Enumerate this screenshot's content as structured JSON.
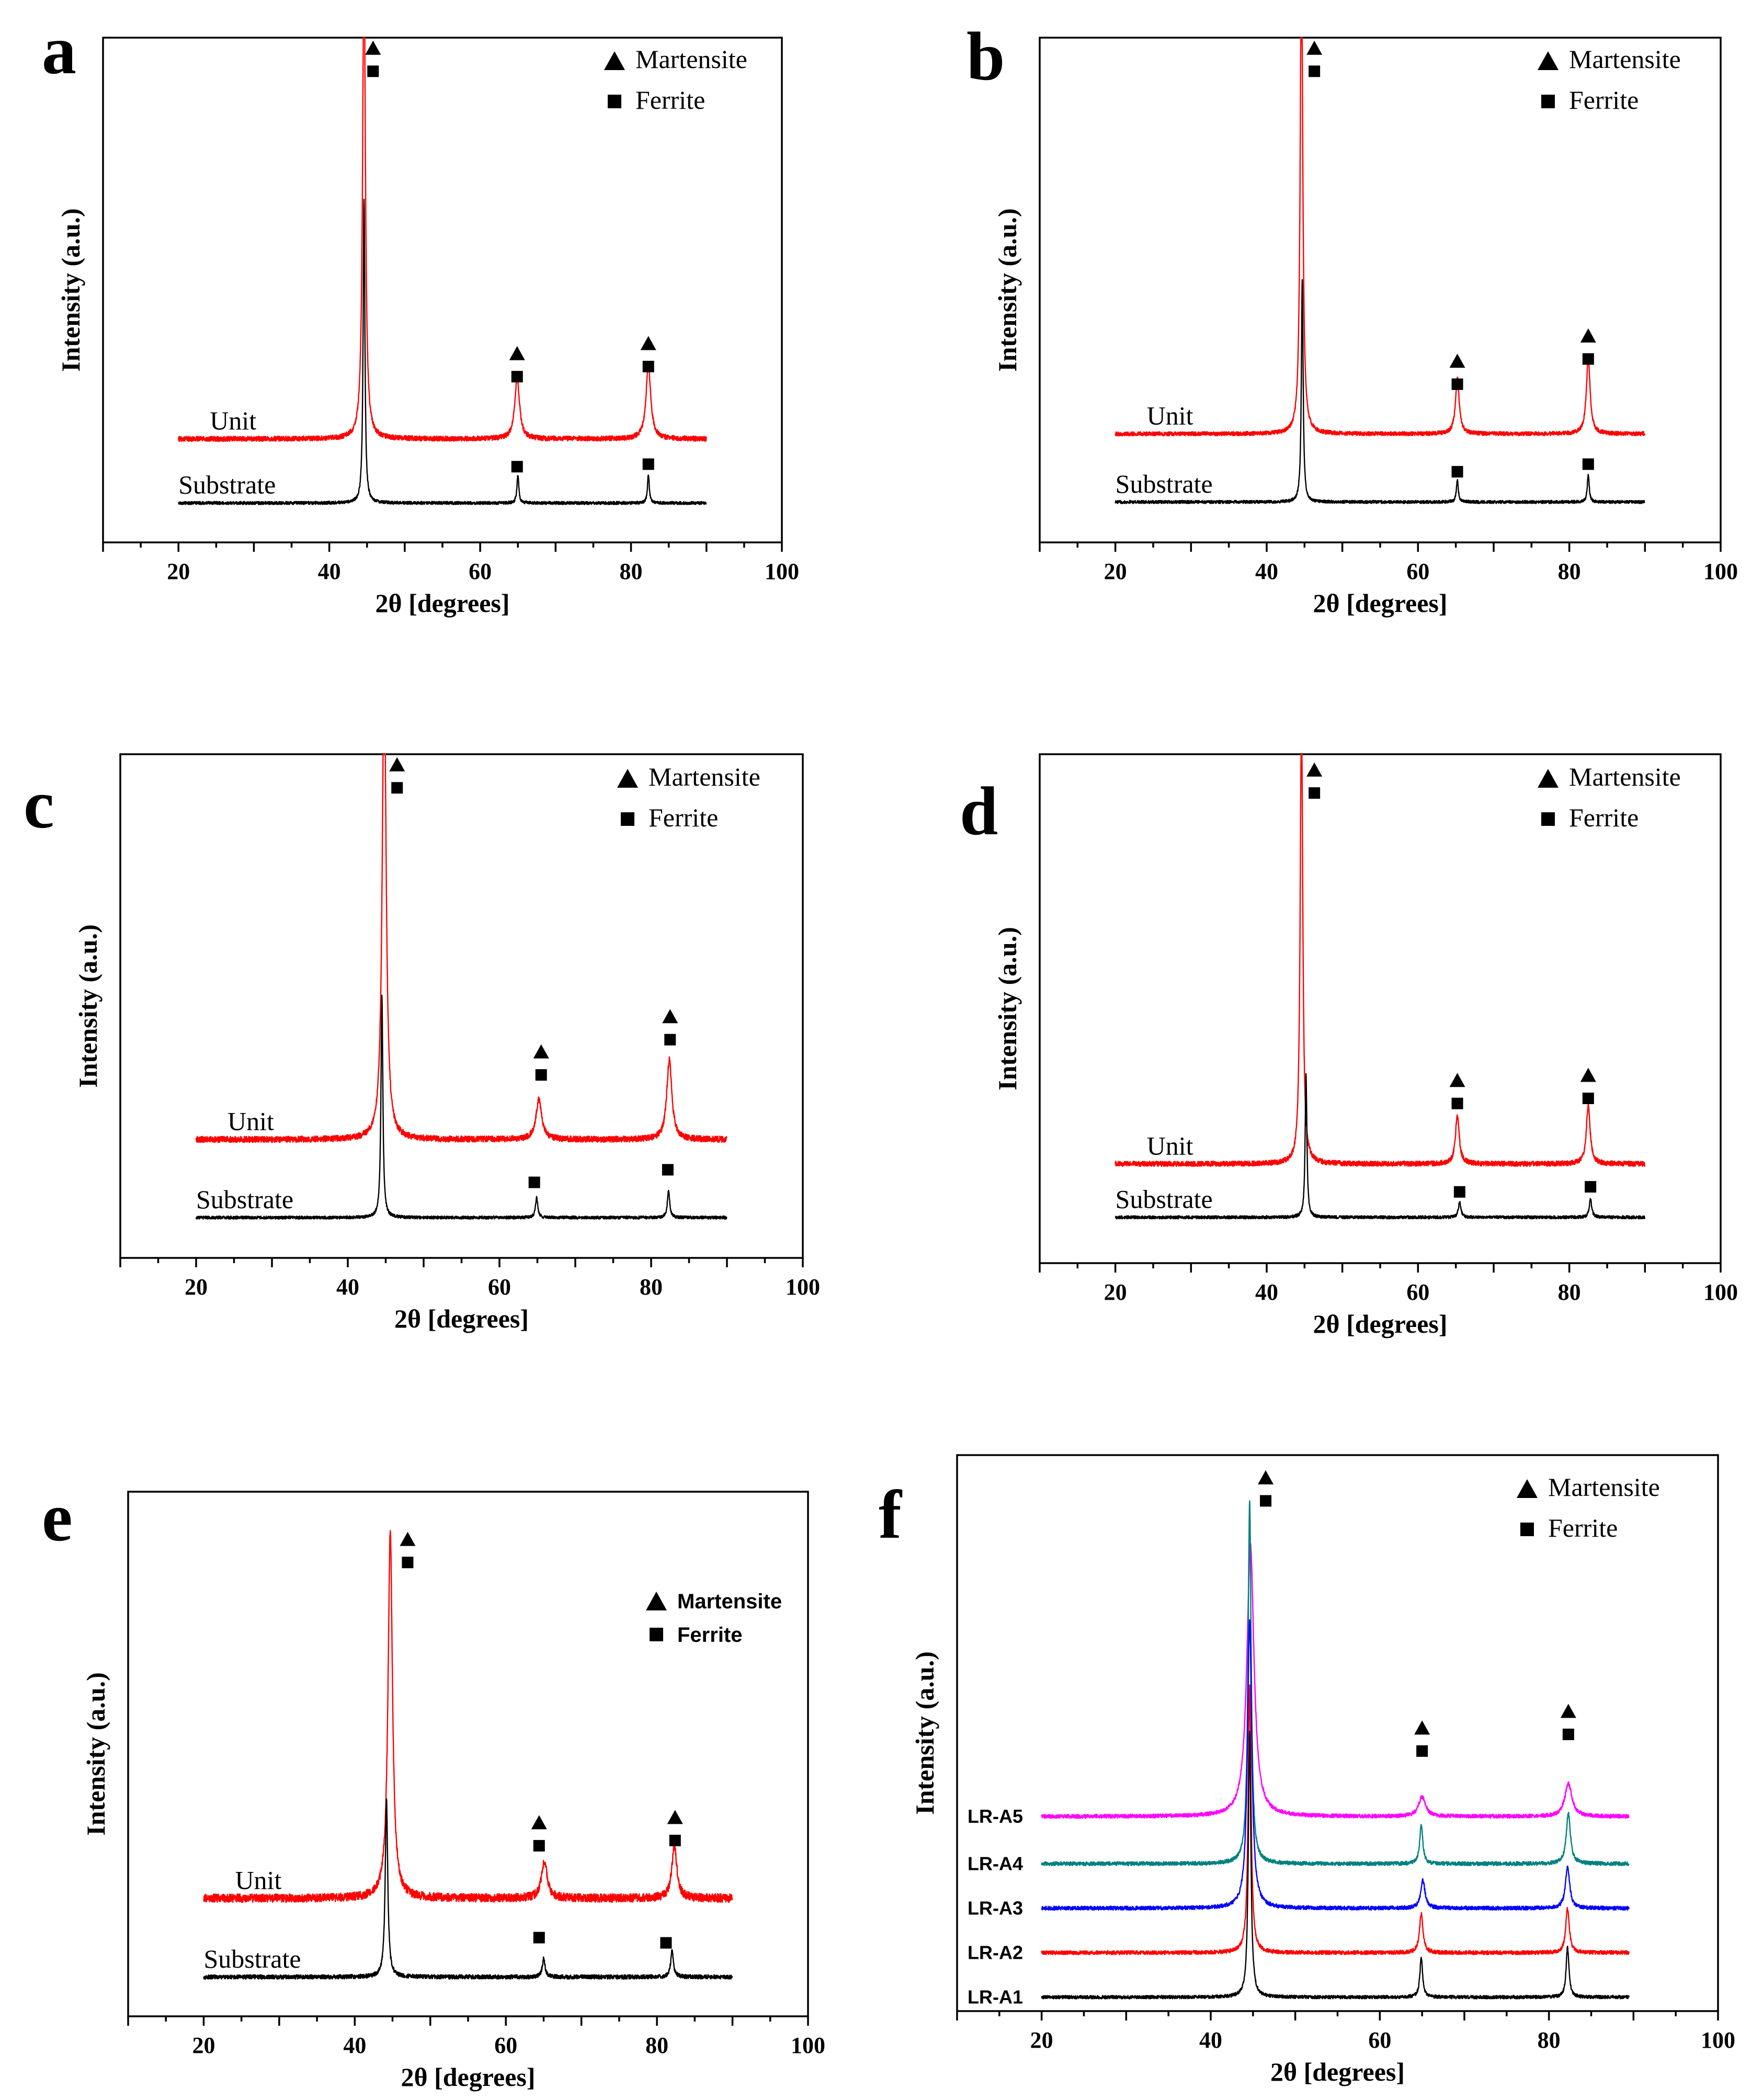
{
  "chart_data": [
    {
      "panel": "a",
      "type": "line",
      "xlabel": "2θ [degrees]",
      "ylabel": "Intensity (a.u.)",
      "xlim": [
        10,
        100
      ],
      "ylim": [
        0,
        100
      ],
      "xticks": [
        "20",
        "40",
        "60",
        "80",
        "100"
      ],
      "xtick_values": [
        20,
        40,
        60,
        80,
        100
      ],
      "legend": [
        {
          "marker": "triangle",
          "label": "Martensite"
        },
        {
          "marker": "square",
          "label": "Ferrite"
        }
      ],
      "series": [
        {
          "name": "Unit",
          "color": "#ff0000",
          "baseline": 20.5,
          "x_range": [
            20,
            90
          ],
          "noise": 0.5,
          "peaks": [
            {
              "x": 44.6,
              "height": 96,
              "width": 0.22
            },
            {
              "x": 64.9,
              "height": 12,
              "width": 0.38
            },
            {
              "x": 82.3,
              "height": 14.5,
              "width": 0.38
            }
          ]
        },
        {
          "name": "Substrate",
          "color": "#000000",
          "baseline": 7.8,
          "x_range": [
            20,
            90
          ],
          "noise": 0.3,
          "peaks": [
            {
              "x": 44.6,
              "height": 60,
              "width": 0.14
            },
            {
              "x": 65.0,
              "height": 5.5,
              "width": 0.15
            },
            {
              "x": 82.3,
              "height": 5.5,
              "width": 0.15
            }
          ]
        }
      ],
      "annotations": [
        {
          "x": 45.8,
          "y": 98,
          "markers": [
            "triangle",
            "square"
          ]
        },
        {
          "x": 64.9,
          "y": 37.5,
          "markers": [
            "triangle",
            "square"
          ]
        },
        {
          "x": 82.3,
          "y": 39.5,
          "markers": [
            "triangle",
            "square"
          ]
        },
        {
          "x": 64.9,
          "y": 15,
          "markers": [
            "square"
          ]
        },
        {
          "x": 82.3,
          "y": 15.5,
          "markers": [
            "square"
          ]
        }
      ]
    },
    {
      "panel": "b",
      "type": "line",
      "xlabel": "2θ [degrees]",
      "ylabel": "Intensity (a.u.)",
      "xlim": [
        10,
        100
      ],
      "ylim": [
        0,
        100
      ],
      "xticks": [
        "20",
        "40",
        "60",
        "80",
        "100"
      ],
      "xtick_values": [
        20,
        40,
        60,
        80,
        100
      ],
      "legend": [
        {
          "marker": "triangle",
          "label": "Martensite"
        },
        {
          "marker": "square",
          "label": "Ferrite"
        }
      ],
      "series": [
        {
          "name": "Unit",
          "color": "#ff0000",
          "baseline": 21.5,
          "x_range": [
            20,
            90
          ],
          "noise": 0.4,
          "peaks": [
            {
              "x": 44.6,
              "height": 96,
              "width": 0.2
            },
            {
              "x": 65.2,
              "height": 11,
              "width": 0.3
            },
            {
              "x": 82.5,
              "height": 15,
              "width": 0.3
            }
          ]
        },
        {
          "name": "Substrate",
          "color": "#000000",
          "baseline": 8,
          "x_range": [
            20,
            90
          ],
          "noise": 0.3,
          "peaks": [
            {
              "x": 44.7,
              "height": 44,
              "width": 0.14
            },
            {
              "x": 65.2,
              "height": 4.5,
              "width": 0.15
            },
            {
              "x": 82.5,
              "height": 5.5,
              "width": 0.15
            }
          ]
        }
      ],
      "annotations": [
        {
          "x": 46.3,
          "y": 98,
          "markers": [
            "triangle",
            "square"
          ]
        },
        {
          "x": 65.2,
          "y": 36,
          "markers": [
            "triangle",
            "square"
          ]
        },
        {
          "x": 82.5,
          "y": 41,
          "markers": [
            "triangle",
            "square"
          ]
        },
        {
          "x": 65.2,
          "y": 14,
          "markers": [
            "square"
          ]
        },
        {
          "x": 82.5,
          "y": 15.5,
          "markers": [
            "square"
          ]
        }
      ]
    },
    {
      "panel": "c",
      "type": "line",
      "xlabel": "2θ [degrees]",
      "ylabel": "Intensity (a.u.)",
      "xlim": [
        10,
        100
      ],
      "ylim": [
        0,
        100
      ],
      "xticks": [
        "20",
        "40",
        "60",
        "80",
        "100"
      ],
      "xtick_values": [
        20,
        40,
        60,
        80,
        100
      ],
      "legend": [
        {
          "marker": "triangle",
          "label": "Martensite"
        },
        {
          "marker": "square",
          "label": "Ferrite"
        }
      ],
      "series": [
        {
          "name": "Unit",
          "color": "#ff0000",
          "baseline": 23.5,
          "x_range": [
            20,
            90
          ],
          "noise": 0.6,
          "peaks": [
            {
              "x": 44.8,
              "height": 96,
              "width": 0.3
            },
            {
              "x": 65.2,
              "height": 8,
              "width": 0.45
            },
            {
              "x": 82.4,
              "height": 16,
              "width": 0.4
            }
          ]
        },
        {
          "name": "Substrate",
          "color": "#000000",
          "baseline": 8,
          "x_range": [
            20,
            90
          ],
          "noise": 0.3,
          "peaks": [
            {
              "x": 44.5,
              "height": 44,
              "width": 0.15
            },
            {
              "x": 64.9,
              "height": 4,
              "width": 0.18
            },
            {
              "x": 82.3,
              "height": 5.5,
              "width": 0.18
            }
          ]
        }
      ],
      "annotations": [
        {
          "x": 46.5,
          "y": 98,
          "markers": [
            "triangle",
            "square"
          ]
        },
        {
          "x": 65.5,
          "y": 41,
          "markers": [
            "triangle",
            "square"
          ]
        },
        {
          "x": 82.5,
          "y": 48,
          "markers": [
            "triangle",
            "square"
          ]
        },
        {
          "x": 64.6,
          "y": 15,
          "markers": [
            "square"
          ]
        },
        {
          "x": 82.2,
          "y": 17.5,
          "markers": [
            "square"
          ]
        }
      ]
    },
    {
      "panel": "d",
      "type": "line",
      "xlabel": "2θ [degrees]",
      "ylabel": "Intensity (a.u.)",
      "xlim": [
        10,
        100
      ],
      "ylim": [
        0,
        100
      ],
      "xticks": [
        "20",
        "40",
        "60",
        "80",
        "100"
      ],
      "xtick_values": [
        20,
        40,
        60,
        80,
        100
      ],
      "legend": [
        {
          "marker": "triangle",
          "label": "Martensite"
        },
        {
          "marker": "square",
          "label": "Ferrite"
        }
      ],
      "series": [
        {
          "name": "Unit",
          "color": "#ff0000",
          "baseline": 19.5,
          "x_range": [
            20,
            90
          ],
          "noise": 0.5,
          "peaks": [
            {
              "x": 44.6,
              "height": 90,
              "width": 0.2
            },
            {
              "x": 65.2,
              "height": 9.5,
              "width": 0.3
            },
            {
              "x": 82.5,
              "height": 11.5,
              "width": 0.3
            }
          ]
        },
        {
          "name": "Substrate",
          "color": "#000000",
          "baseline": 9,
          "x_range": [
            20,
            90
          ],
          "noise": 0.3,
          "peaks": [
            {
              "x": 45.2,
              "height": 28,
              "width": 0.14
            },
            {
              "x": 65.5,
              "height": 3,
              "width": 0.2
            },
            {
              "x": 82.8,
              "height": 3.5,
              "width": 0.2
            }
          ]
        }
      ],
      "annotations": [
        {
          "x": 46.3,
          "y": 97,
          "markers": [
            "triangle",
            "square"
          ]
        },
        {
          "x": 65.2,
          "y": 36,
          "markers": [
            "triangle",
            "square"
          ]
        },
        {
          "x": 82.5,
          "y": 37,
          "markers": [
            "triangle",
            "square"
          ]
        },
        {
          "x": 65.5,
          "y": 14,
          "markers": [
            "square"
          ]
        },
        {
          "x": 82.8,
          "y": 15,
          "markers": [
            "square"
          ]
        }
      ]
    },
    {
      "panel": "e",
      "type": "line",
      "xlabel": "2θ [degrees]",
      "ylabel": "Intensity (a.u.)",
      "xlim": [
        10,
        100
      ],
      "ylim": [
        0,
        100
      ],
      "xticks": [
        "20",
        "40",
        "60",
        "80",
        "100"
      ],
      "xtick_values": [
        20,
        40,
        60,
        80,
        100
      ],
      "legend": [
        {
          "marker": "triangle",
          "label": "Martensite"
        },
        {
          "marker": "square",
          "label": "Ferrite"
        }
      ],
      "series": [
        {
          "name": "Unit",
          "color": "#ff0000",
          "baseline": 22.5,
          "x_range": [
            20,
            90
          ],
          "noise": 0.8,
          "peaks": [
            {
              "x": 44.7,
              "height": 70,
              "width": 0.35
            },
            {
              "x": 65.1,
              "height": 7,
              "width": 0.45
            },
            {
              "x": 82.3,
              "height": 10,
              "width": 0.4
            }
          ]
        },
        {
          "name": "Substrate",
          "color": "#000000",
          "baseline": 7.5,
          "x_range": [
            20,
            90
          ],
          "noise": 0.4,
          "peaks": [
            {
              "x": 44.2,
              "height": 34,
              "width": 0.2
            },
            {
              "x": 65.0,
              "height": 3.5,
              "width": 0.22
            },
            {
              "x": 82.0,
              "height": 5,
              "width": 0.22
            }
          ]
        }
      ],
      "annotations": [
        {
          "x": 47.0,
          "y": 91,
          "markers": [
            "triangle",
            "square"
          ]
        },
        {
          "x": 64.4,
          "y": 37,
          "markers": [
            "triangle",
            "square"
          ]
        },
        {
          "x": 82.4,
          "y": 38,
          "markers": [
            "triangle",
            "square"
          ]
        },
        {
          "x": 64.4,
          "y": 15,
          "markers": [
            "square"
          ]
        },
        {
          "x": 81.2,
          "y": 14,
          "markers": [
            "square"
          ]
        }
      ]
    },
    {
      "panel": "f",
      "type": "line",
      "xlabel": "2θ [degrees]",
      "ylabel": "Intensity (a.u.)",
      "xlim": [
        10,
        100
      ],
      "ylim": [
        0,
        100
      ],
      "xticks": [
        "20",
        "40",
        "60",
        "80",
        "100"
      ],
      "xtick_values": [
        20,
        40,
        60,
        80,
        100
      ],
      "legend": [
        {
          "marker": "triangle",
          "label": "Martensite"
        },
        {
          "marker": "square",
          "label": "Ferrite"
        }
      ],
      "series": [
        {
          "name": "LR-A5",
          "color": "#ff00ff",
          "baseline": 35,
          "x_range": [
            20,
            89.5
          ],
          "noise": 0.35,
          "peaks": [
            {
              "x": 44.7,
              "height": 49,
              "width": 0.5
            },
            {
              "x": 65.0,
              "height": 3.5,
              "width": 0.5
            },
            {
              "x": 82.3,
              "height": 6,
              "width": 0.5
            }
          ]
        },
        {
          "name": "LR-A4",
          "color": "#008080",
          "baseline": 26.5,
          "x_range": [
            20,
            89.5
          ],
          "noise": 0.35,
          "peaks": [
            {
              "x": 44.6,
              "height": 65,
              "width": 0.22
            },
            {
              "x": 64.9,
              "height": 7,
              "width": 0.22
            },
            {
              "x": 82.3,
              "height": 9,
              "width": 0.3
            }
          ]
        },
        {
          "name": "LR-A3",
          "color": "#0000ff",
          "baseline": 18.5,
          "x_range": [
            20,
            89.5
          ],
          "noise": 0.35,
          "peaks": [
            {
              "x": 44.6,
              "height": 52,
              "width": 0.3
            },
            {
              "x": 65.1,
              "height": 5,
              "width": 0.3
            },
            {
              "x": 82.2,
              "height": 7.5,
              "width": 0.3
            }
          ]
        },
        {
          "name": "LR-A2",
          "color": "#ff0000",
          "baseline": 10.5,
          "x_range": [
            20,
            89.5
          ],
          "noise": 0.35,
          "peaks": [
            {
              "x": 44.6,
              "height": 48,
              "width": 0.2
            },
            {
              "x": 64.9,
              "height": 7,
              "width": 0.25
            },
            {
              "x": 82.2,
              "height": 8,
              "width": 0.25
            }
          ]
        },
        {
          "name": "LR-A1",
          "color": "#000000",
          "baseline": 2.5,
          "x_range": [
            20,
            89.5
          ],
          "noise": 0.3,
          "peaks": [
            {
              "x": 44.6,
              "height": 48,
              "width": 0.18
            },
            {
              "x": 64.9,
              "height": 7,
              "width": 0.2
            },
            {
              "x": 82.2,
              "height": 9,
              "width": 0.2
            }
          ]
        }
      ],
      "annotations": [
        {
          "x": 46.5,
          "y": 96,
          "markers": [
            "triangle",
            "square"
          ]
        },
        {
          "x": 65.0,
          "y": 51,
          "markers": [
            "triangle",
            "square"
          ]
        },
        {
          "x": 82.3,
          "y": 54,
          "markers": [
            "triangle",
            "square"
          ]
        }
      ]
    }
  ]
}
